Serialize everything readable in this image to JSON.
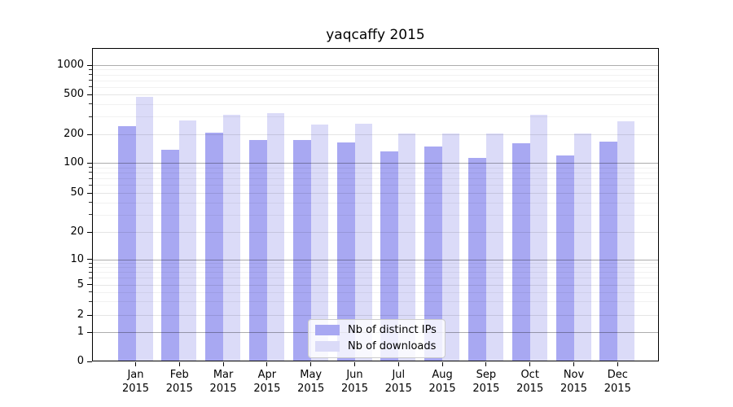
{
  "chart_data": {
    "type": "bar",
    "title": "yaqcaffy 2015",
    "scale": "symlog",
    "grid": true,
    "ylim": [
      0,
      1450
    ],
    "y_ticks": [
      0,
      1,
      2,
      5,
      10,
      20,
      50,
      100,
      200,
      500,
      1000
    ],
    "y_tick_labels": [
      "0",
      "1",
      "2",
      "5",
      "10",
      "20",
      "50",
      "100",
      "200",
      "500",
      "1000"
    ],
    "months": [
      "Jan",
      "Feb",
      "Mar",
      "Apr",
      "May",
      "Jun",
      "Jul",
      "Aug",
      "Sep",
      "Oct",
      "Nov",
      "Dec"
    ],
    "year": "2015",
    "categories": [
      "Jan 2015",
      "Feb 2015",
      "Mar 2015",
      "Apr 2015",
      "May 2015",
      "Jun 2015",
      "Jul 2015",
      "Aug 2015",
      "Sep 2015",
      "Oct 2015",
      "Nov 2015",
      "Dec 2015"
    ],
    "series": [
      {
        "name": "Nb of distinct IPs",
        "color": "#a8a8f2",
        "values": [
          240,
          137,
          208,
          174,
          175,
          165,
          132,
          149,
          113,
          160,
          120,
          167
        ]
      },
      {
        "name": "Nb of downloads",
        "color": "#dbdbf8",
        "values": [
          470,
          275,
          315,
          323,
          251,
          256,
          205,
          203,
          204,
          312,
          202,
          270
        ]
      }
    ],
    "legend": {
      "position": "lower-center",
      "entries": [
        "Nb of distinct IPs",
        "Nb of downloads"
      ]
    }
  }
}
